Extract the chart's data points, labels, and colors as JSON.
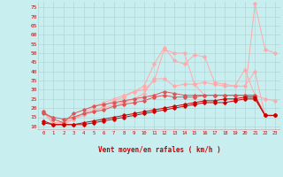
{
  "bg_color": "#c8eef0",
  "grid_color": "#b0d8d8",
  "line_color_dark": "#cc0000",
  "line_color_mid": "#dd5555",
  "line_color_light": "#ffaaaa",
  "xlabel": "Vent moyen/en rafales ( km/h )",
  "x": [
    0,
    1,
    2,
    3,
    4,
    5,
    6,
    7,
    8,
    9,
    10,
    11,
    12,
    13,
    14,
    15,
    16,
    17,
    18,
    19,
    20,
    21,
    22,
    23
  ],
  "ylim": [
    8,
    78
  ],
  "yticks": [
    10,
    15,
    20,
    25,
    30,
    35,
    40,
    45,
    50,
    55,
    60,
    65,
    70,
    75
  ],
  "line1": [
    12,
    11,
    11,
    11,
    11,
    12,
    13,
    14,
    15,
    16,
    17,
    18,
    19,
    20,
    21,
    22,
    23,
    23,
    23,
    24,
    25,
    25,
    16,
    16
  ],
  "line2": [
    13,
    11,
    11,
    11,
    12,
    13,
    14,
    15,
    16,
    17,
    18,
    19,
    20,
    21,
    22,
    23,
    24,
    24,
    25,
    25,
    26,
    26,
    16,
    16
  ],
  "line3": [
    17,
    15,
    14,
    15,
    17,
    18,
    19,
    21,
    22,
    23,
    24,
    26,
    27,
    26,
    26,
    26,
    27,
    27,
    27,
    27,
    27,
    27,
    16,
    16
  ],
  "line4": [
    18,
    14,
    12,
    17,
    19,
    21,
    22,
    23,
    24,
    25,
    26,
    27,
    29,
    28,
    27,
    27,
    27,
    27,
    27,
    27,
    27,
    27,
    16,
    16
  ],
  "line5": [
    18,
    12,
    12,
    15,
    17,
    19,
    20,
    22,
    23,
    25,
    28,
    36,
    36,
    32,
    33,
    33,
    34,
    33,
    32,
    32,
    32,
    40,
    16,
    16
  ],
  "line6": [
    18,
    12,
    12,
    14,
    16,
    18,
    21,
    24,
    26,
    29,
    32,
    44,
    53,
    46,
    44,
    49,
    48,
    34,
    33,
    32,
    41,
    27,
    25,
    24
  ],
  "line7": [
    18,
    11,
    11,
    14,
    17,
    21,
    23,
    25,
    27,
    29,
    30,
    35,
    52,
    50,
    50,
    33,
    27,
    27,
    27,
    27,
    27,
    77,
    52,
    50
  ]
}
